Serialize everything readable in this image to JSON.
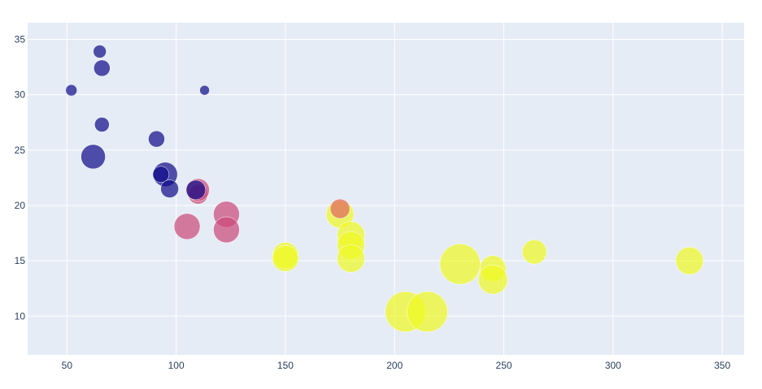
{
  "chart_data": {
    "type": "scatter",
    "subtype": "bubble",
    "title": "",
    "xlabel": "",
    "ylabel": "",
    "xlim": [
      32,
      360
    ],
    "ylim": [
      6.5,
      36.5
    ],
    "x_ticks": [
      50,
      100,
      150,
      200,
      250,
      300,
      350
    ],
    "y_ticks": [
      10,
      15,
      20,
      25,
      30,
      35
    ],
    "grid": true,
    "legend": "none",
    "colors": {
      "plot_bg": "#e5ecf6",
      "grid": "#ffffff",
      "tick_text": "#2a3f5f"
    },
    "points": [
      {
        "x": 52,
        "y": 30.4,
        "size": 7,
        "color": "#0d0887"
      },
      {
        "x": 65,
        "y": 33.9,
        "size": 8,
        "color": "#0d0887"
      },
      {
        "x": 66,
        "y": 32.4,
        "size": 10,
        "color": "#0d0887"
      },
      {
        "x": 113,
        "y": 30.4,
        "size": 6,
        "color": "#0d0887"
      },
      {
        "x": 66,
        "y": 27.3,
        "size": 9,
        "color": "#0d0887"
      },
      {
        "x": 91,
        "y": 26.0,
        "size": 10,
        "color": "#0d0887"
      },
      {
        "x": 62,
        "y": 24.4,
        "size": 15,
        "color": "#0d0887"
      },
      {
        "x": 95,
        "y": 22.8,
        "size": 15,
        "color": "#0d0887"
      },
      {
        "x": 93,
        "y": 22.8,
        "size": 10,
        "color": "#0d0887"
      },
      {
        "x": 97,
        "y": 21.5,
        "size": 11,
        "color": "#0d0887"
      },
      {
        "x": 110,
        "y": 21.0,
        "size": 12,
        "color": "#cc4778"
      },
      {
        "x": 110,
        "y": 21.4,
        "size": 14,
        "color": "#cc4778"
      },
      {
        "x": 109,
        "y": 21.4,
        "size": 12,
        "color": "#0d0887"
      },
      {
        "x": 123,
        "y": 19.2,
        "size": 16,
        "color": "#cc4778"
      },
      {
        "x": 105,
        "y": 18.1,
        "size": 16,
        "color": "#cc4778"
      },
      {
        "x": 123,
        "y": 17.8,
        "size": 16,
        "color": "#cc4778"
      },
      {
        "x": 150,
        "y": 15.5,
        "size": 16,
        "color": "#f0f921"
      },
      {
        "x": 150,
        "y": 15.2,
        "size": 16,
        "color": "#f0f921"
      },
      {
        "x": 175,
        "y": 19.2,
        "size": 17,
        "color": "#f0f921"
      },
      {
        "x": 180,
        "y": 17.3,
        "size": 17,
        "color": "#f0f921"
      },
      {
        "x": 180,
        "y": 16.4,
        "size": 17,
        "color": "#f0f921"
      },
      {
        "x": 180,
        "y": 15.2,
        "size": 17,
        "color": "#f0f921"
      },
      {
        "x": 175,
        "y": 19.7,
        "size": 12,
        "color": "#e16462"
      },
      {
        "x": 205,
        "y": 10.4,
        "size": 25,
        "color": "#f0f921"
      },
      {
        "x": 215,
        "y": 10.4,
        "size": 25,
        "color": "#f0f921"
      },
      {
        "x": 230,
        "y": 14.7,
        "size": 25,
        "color": "#f0f921"
      },
      {
        "x": 245,
        "y": 14.3,
        "size": 16,
        "color": "#f0f921"
      },
      {
        "x": 245,
        "y": 13.3,
        "size": 18,
        "color": "#f0f921"
      },
      {
        "x": 264,
        "y": 15.8,
        "size": 15,
        "color": "#f0f921"
      },
      {
        "x": 335,
        "y": 15.0,
        "size": 17,
        "color": "#f0f921"
      }
    ]
  }
}
